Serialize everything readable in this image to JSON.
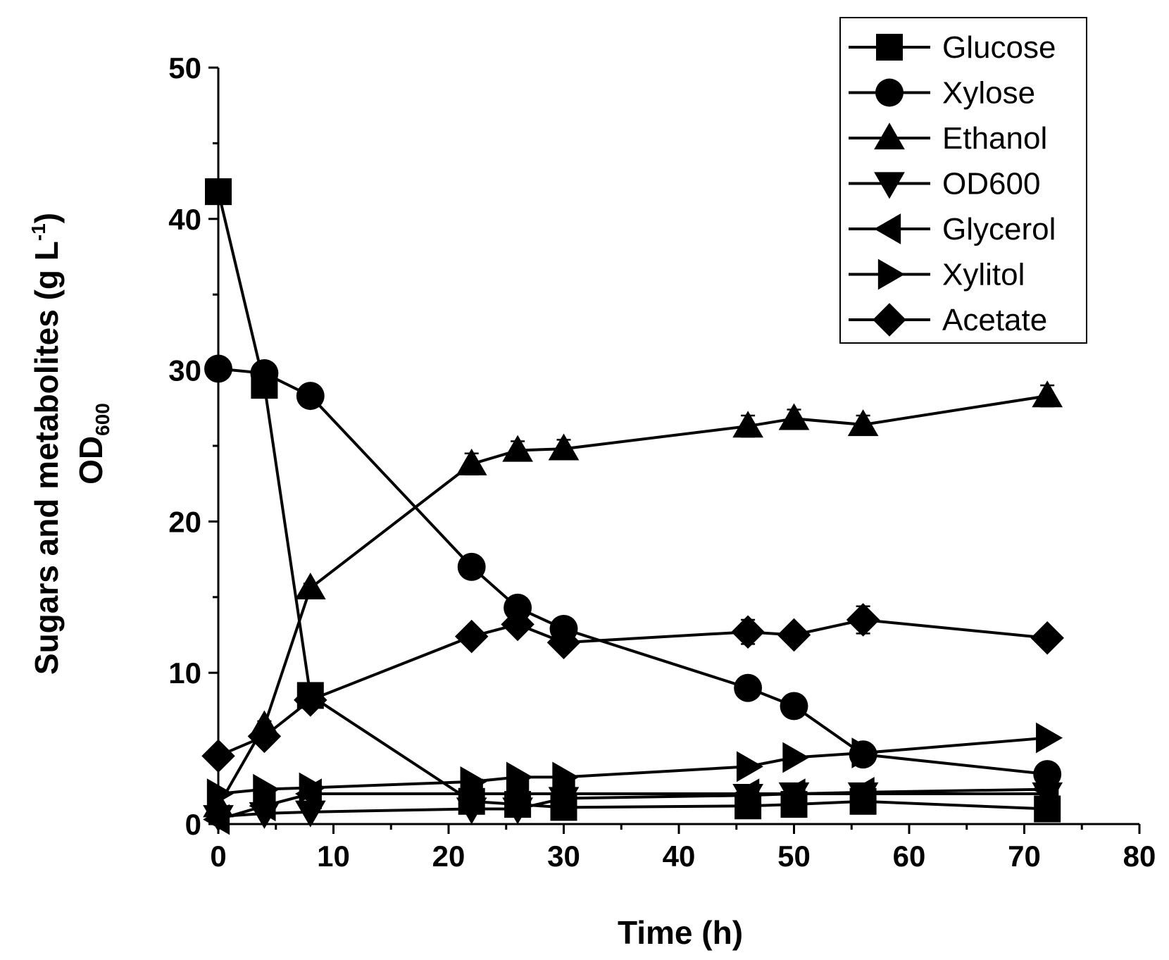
{
  "chart_data": {
    "type": "line",
    "xlabel": "Time (h)",
    "ylabel": {
      "line1_main": "Sugars and metabolites (g L",
      "line1_sup": "-1",
      "line1_close": ")",
      "line2_main": "OD",
      "line2_sub": "600"
    },
    "xlim": [
      0,
      80
    ],
    "ylim": [
      0,
      50
    ],
    "xticks": [
      "0",
      "10",
      "20",
      "30",
      "40",
      "50",
      "60",
      "70",
      "80"
    ],
    "yticks": [
      "0",
      "10",
      "20",
      "30",
      "40",
      "50"
    ],
    "legend_position": "top-right",
    "series": [
      {
        "name": "Glucose",
        "marker": "square",
        "points": [
          [
            0,
            41.8
          ],
          [
            4,
            29
          ],
          [
            8,
            8.5
          ],
          [
            22,
            1.5
          ],
          [
            26,
            1.3
          ],
          [
            30,
            1.1
          ],
          [
            46,
            1.2
          ],
          [
            50,
            1.3
          ],
          [
            56,
            1.5
          ],
          [
            72,
            1.0
          ]
        ]
      },
      {
        "name": "Xylose",
        "marker": "circle",
        "points": [
          [
            0,
            30.1
          ],
          [
            4,
            29.8
          ],
          [
            8,
            28.3
          ],
          [
            22,
            17.0
          ],
          [
            26,
            14.3
          ],
          [
            30,
            12.9
          ],
          [
            46,
            9.0
          ],
          [
            50,
            7.8
          ],
          [
            56,
            4.6
          ],
          [
            72,
            3.3
          ]
        ],
        "errors": [
          0,
          0.3,
          0.3,
          0.3,
          0.6,
          0.3,
          0.5,
          0.3,
          0.4,
          0.2
        ]
      },
      {
        "name": "Ethanol",
        "marker": "triangle-up",
        "points": [
          [
            0,
            1.2
          ],
          [
            4,
            6.5
          ],
          [
            8,
            15.6
          ],
          [
            22,
            23.8
          ],
          [
            26,
            24.7
          ],
          [
            30,
            24.8
          ],
          [
            46,
            26.3
          ],
          [
            50,
            26.8
          ],
          [
            56,
            26.4
          ],
          [
            72,
            28.3
          ]
        ],
        "errors": [
          0,
          0.3,
          0.3,
          0.7,
          0.6,
          0.6,
          0.7,
          0.6,
          0.6,
          0.7
        ]
      },
      {
        "name": "OD600",
        "marker": "triangle-down",
        "points": [
          [
            0,
            0.5
          ],
          [
            4,
            0.7
          ],
          [
            8,
            0.8
          ],
          [
            22,
            1.0
          ],
          [
            26,
            1.0
          ],
          [
            30,
            1.7
          ],
          [
            46,
            1.9
          ],
          [
            50,
            2.0
          ],
          [
            56,
            2.0
          ],
          [
            72,
            2.0
          ]
        ]
      },
      {
        "name": "Glycerol",
        "marker": "triangle-left",
        "points": [
          [
            0,
            0.3
          ],
          [
            4,
            1.2
          ],
          [
            8,
            2.0
          ],
          [
            22,
            2.0
          ],
          [
            26,
            2.0
          ],
          [
            30,
            2.0
          ],
          [
            46,
            2.0
          ],
          [
            50,
            2.0
          ],
          [
            56,
            2.1
          ],
          [
            72,
            2.3
          ]
        ]
      },
      {
        "name": "Xylitol",
        "marker": "triangle-right",
        "points": [
          [
            0,
            2.0
          ],
          [
            4,
            2.3
          ],
          [
            8,
            2.4
          ],
          [
            22,
            2.8
          ],
          [
            26,
            3.1
          ],
          [
            30,
            3.1
          ],
          [
            46,
            3.8
          ],
          [
            50,
            4.4
          ],
          [
            56,
            4.7
          ],
          [
            72,
            5.7
          ]
        ]
      },
      {
        "name": "Acetate",
        "marker": "diamond",
        "points": [
          [
            0,
            4.5
          ],
          [
            4,
            5.8
          ],
          [
            8,
            8.2
          ],
          [
            22,
            12.4
          ],
          [
            26,
            13.2
          ],
          [
            30,
            12.0
          ],
          [
            46,
            12.7
          ],
          [
            50,
            12.5
          ],
          [
            56,
            13.5
          ],
          [
            72,
            12.3
          ]
        ],
        "errors": [
          0,
          0.3,
          0.3,
          0.3,
          0.5,
          0.4,
          0.8,
          0.4,
          0.9,
          0.3
        ]
      }
    ]
  }
}
